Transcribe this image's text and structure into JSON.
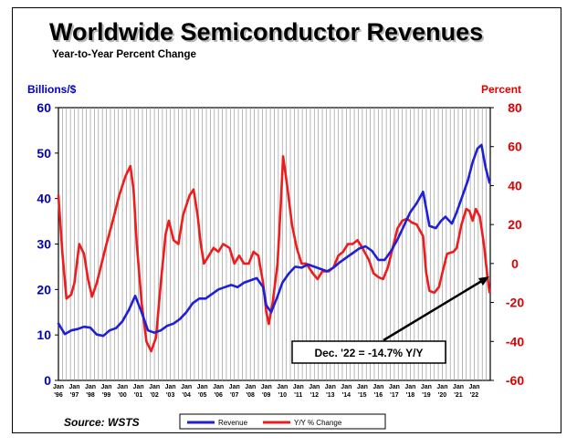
{
  "chart_data": {
    "type": "line",
    "title": "Worldwide Semiconductor Revenues",
    "subtitle": "Year-to-Year Percent Change",
    "ylabel_left": "Billions/$",
    "ylabel_right": "Percent",
    "ylim_left": [
      0,
      60
    ],
    "ylim_right": [
      -60,
      80
    ],
    "left_ticks": [
      "0",
      "10",
      "20",
      "30",
      "40",
      "50",
      "60"
    ],
    "right_ticks": [
      "-60",
      "-40",
      "-20",
      "0",
      "20",
      "40",
      "60",
      "80"
    ],
    "x_range": [
      1996.0,
      2023.0
    ],
    "x_tick_month": "Jan",
    "x_tick_years": [
      "'96",
      "'97",
      "'98",
      "'99",
      "'00",
      "'01",
      "'02",
      "'03",
      "'04",
      "'05",
      "'06",
      "'07",
      "'08",
      "'09",
      "'10",
      "'11",
      "'12",
      "'13",
      "'14",
      "'15",
      "'16",
      "'17",
      "'18",
      "'19",
      "'20",
      "'21",
      "'22"
    ],
    "grid": "vertical",
    "legend_position": "bottom-center",
    "source": "Source: WSTS",
    "annotation": "Dec. '22 = -14.7% Y/Y",
    "colors": {
      "revenue": "#1f1fd6",
      "yoy": "#ee1c1c",
      "title": "#000000",
      "left_axis": "#0000cc",
      "right_axis": "#e00000"
    },
    "series": [
      {
        "name": "Revenue",
        "axis": "left",
        "points": [
          [
            1996.0,
            12.5
          ],
          [
            1996.4,
            10.2
          ],
          [
            1996.8,
            11.0
          ],
          [
            1997.2,
            11.3
          ],
          [
            1997.6,
            11.8
          ],
          [
            1998.0,
            11.6
          ],
          [
            1998.4,
            10.1
          ],
          [
            1998.8,
            9.8
          ],
          [
            1999.2,
            11.0
          ],
          [
            1999.6,
            11.5
          ],
          [
            2000.0,
            13.0
          ],
          [
            2000.4,
            15.5
          ],
          [
            2000.8,
            18.6
          ],
          [
            2001.2,
            15.0
          ],
          [
            2001.6,
            11.0
          ],
          [
            2002.0,
            10.5
          ],
          [
            2002.4,
            11.0
          ],
          [
            2002.8,
            12.0
          ],
          [
            2003.2,
            12.5
          ],
          [
            2003.6,
            13.5
          ],
          [
            2004.0,
            15.0
          ],
          [
            2004.4,
            17.0
          ],
          [
            2004.8,
            18.0
          ],
          [
            2005.2,
            18.0
          ],
          [
            2005.6,
            19.0
          ],
          [
            2006.0,
            20.0
          ],
          [
            2006.4,
            20.5
          ],
          [
            2006.8,
            21.0
          ],
          [
            2007.2,
            20.5
          ],
          [
            2007.6,
            21.5
          ],
          [
            2008.0,
            22.0
          ],
          [
            2008.4,
            22.5
          ],
          [
            2008.8,
            20.5
          ],
          [
            2009.0,
            16.5
          ],
          [
            2009.3,
            15.0
          ],
          [
            2009.7,
            18.5
          ],
          [
            2010.0,
            21.5
          ],
          [
            2010.4,
            23.5
          ],
          [
            2010.8,
            25.0
          ],
          [
            2011.2,
            24.8
          ],
          [
            2011.6,
            25.5
          ],
          [
            2012.0,
            25.0
          ],
          [
            2012.4,
            24.5
          ],
          [
            2012.8,
            24.0
          ],
          [
            2013.2,
            24.8
          ],
          [
            2013.6,
            26.0
          ],
          [
            2014.0,
            27.0
          ],
          [
            2014.4,
            28.0
          ],
          [
            2014.8,
            29.0
          ],
          [
            2015.2,
            29.5
          ],
          [
            2015.6,
            28.5
          ],
          [
            2016.0,
            26.5
          ],
          [
            2016.4,
            26.5
          ],
          [
            2016.8,
            28.5
          ],
          [
            2017.2,
            31.0
          ],
          [
            2017.6,
            34.0
          ],
          [
            2018.0,
            37.0
          ],
          [
            2018.4,
            39.0
          ],
          [
            2018.8,
            41.5
          ],
          [
            2019.2,
            34.0
          ],
          [
            2019.6,
            33.5
          ],
          [
            2019.9,
            35.0
          ],
          [
            2020.2,
            36.0
          ],
          [
            2020.6,
            34.5
          ],
          [
            2020.9,
            37.0
          ],
          [
            2021.2,
            40.0
          ],
          [
            2021.6,
            44.0
          ],
          [
            2021.9,
            48.0
          ],
          [
            2022.2,
            51.0
          ],
          [
            2022.45,
            51.8
          ],
          [
            2022.7,
            47.0
          ],
          [
            2022.95,
            43.5
          ]
        ]
      },
      {
        "name": "Y/Y % Change",
        "axis": "right",
        "points": [
          [
            1996.0,
            35
          ],
          [
            1996.25,
            5
          ],
          [
            1996.5,
            -18
          ],
          [
            1996.8,
            -16
          ],
          [
            1997.0,
            -10
          ],
          [
            1997.3,
            10
          ],
          [
            1997.6,
            5
          ],
          [
            1997.85,
            -8
          ],
          [
            1998.1,
            -17
          ],
          [
            1998.4,
            -10
          ],
          [
            1998.7,
            0
          ],
          [
            1999.0,
            10
          ],
          [
            1999.4,
            22
          ],
          [
            1999.8,
            35
          ],
          [
            2000.2,
            45
          ],
          [
            2000.5,
            50
          ],
          [
            2000.7,
            38
          ],
          [
            2000.9,
            10
          ],
          [
            2001.2,
            -20
          ],
          [
            2001.5,
            -40
          ],
          [
            2001.8,
            -45
          ],
          [
            2002.1,
            -38
          ],
          [
            2002.4,
            -10
          ],
          [
            2002.7,
            15
          ],
          [
            2002.9,
            22
          ],
          [
            2003.2,
            12
          ],
          [
            2003.5,
            10
          ],
          [
            2003.8,
            25
          ],
          [
            2004.2,
            35
          ],
          [
            2004.45,
            38
          ],
          [
            2004.7,
            25
          ],
          [
            2004.9,
            10
          ],
          [
            2005.1,
            0
          ],
          [
            2005.4,
            4
          ],
          [
            2005.7,
            8
          ],
          [
            2006.0,
            6
          ],
          [
            2006.3,
            10
          ],
          [
            2006.7,
            8
          ],
          [
            2007.0,
            0
          ],
          [
            2007.3,
            4
          ],
          [
            2007.6,
            0
          ],
          [
            2007.9,
            0
          ],
          [
            2008.2,
            6
          ],
          [
            2008.5,
            4
          ],
          [
            2008.8,
            -10
          ],
          [
            2009.0,
            -25
          ],
          [
            2009.15,
            -31
          ],
          [
            2009.4,
            -20
          ],
          [
            2009.7,
            0
          ],
          [
            2009.9,
            30
          ],
          [
            2010.05,
            55
          ],
          [
            2010.3,
            40
          ],
          [
            2010.6,
            20
          ],
          [
            2010.9,
            8
          ],
          [
            2011.2,
            0
          ],
          [
            2011.5,
            0
          ],
          [
            2011.9,
            -5
          ],
          [
            2012.2,
            -8
          ],
          [
            2012.5,
            -4
          ],
          [
            2012.9,
            -4
          ],
          [
            2013.2,
            -2
          ],
          [
            2013.5,
            4
          ],
          [
            2013.8,
            6
          ],
          [
            2014.1,
            10
          ],
          [
            2014.4,
            10
          ],
          [
            2014.7,
            12
          ],
          [
            2015.0,
            8
          ],
          [
            2015.4,
            2
          ],
          [
            2015.7,
            -5
          ],
          [
            2016.0,
            -7
          ],
          [
            2016.3,
            -8
          ],
          [
            2016.6,
            -2
          ],
          [
            2016.9,
            8
          ],
          [
            2017.2,
            18
          ],
          [
            2017.5,
            22
          ],
          [
            2017.8,
            23
          ],
          [
            2018.1,
            21
          ],
          [
            2018.4,
            20
          ],
          [
            2018.8,
            14
          ],
          [
            2019.0,
            -5
          ],
          [
            2019.2,
            -14
          ],
          [
            2019.5,
            -15
          ],
          [
            2019.8,
            -12
          ],
          [
            2020.0,
            -5
          ],
          [
            2020.3,
            5
          ],
          [
            2020.7,
            6
          ],
          [
            2020.9,
            8
          ],
          [
            2021.2,
            20
          ],
          [
            2021.5,
            28
          ],
          [
            2021.7,
            27
          ],
          [
            2021.9,
            22
          ],
          [
            2022.1,
            28
          ],
          [
            2022.35,
            24
          ],
          [
            2022.6,
            10
          ],
          [
            2022.8,
            -5
          ],
          [
            2022.95,
            -14.7
          ]
        ]
      }
    ]
  }
}
